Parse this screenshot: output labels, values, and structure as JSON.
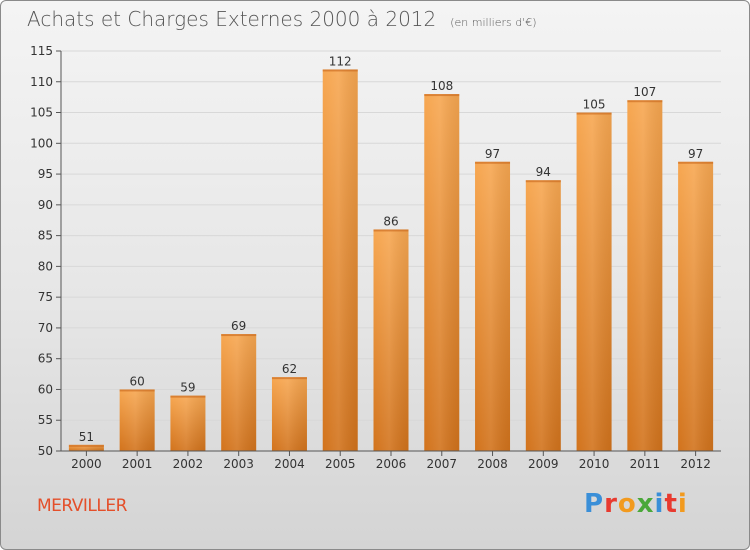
{
  "title": "Achats et Charges Externes 2000 à 2012",
  "subtitle": "(en milliers d'€)",
  "town": "MERVILLER",
  "brand": {
    "text": "Proxiti",
    "colors": [
      "#3a8fd8",
      "#e83a2f",
      "#f29a1e",
      "#4aa83a",
      "#3a8fd8",
      "#e83a2f",
      "#f29a1e"
    ]
  },
  "colors": {
    "bar": "#f09a40",
    "bar_dark": "#d97b22",
    "grid": "#d8d8d8",
    "axis": "#555555"
  },
  "chart_data": {
    "type": "bar",
    "title": "Achats et Charges Externes 2000 à 2012",
    "categories": [
      "2000",
      "2001",
      "2002",
      "2003",
      "2004",
      "2005",
      "2006",
      "2007",
      "2008",
      "2009",
      "2010",
      "2011",
      "2012"
    ],
    "values": [
      51,
      60,
      59,
      69,
      62,
      112,
      86,
      108,
      97,
      94,
      105,
      107,
      97
    ],
    "ylim": [
      50,
      115
    ],
    "yticks": [
      50,
      55,
      60,
      65,
      70,
      75,
      80,
      85,
      90,
      95,
      100,
      105,
      110,
      115
    ],
    "grid": true,
    "legend": "none"
  }
}
